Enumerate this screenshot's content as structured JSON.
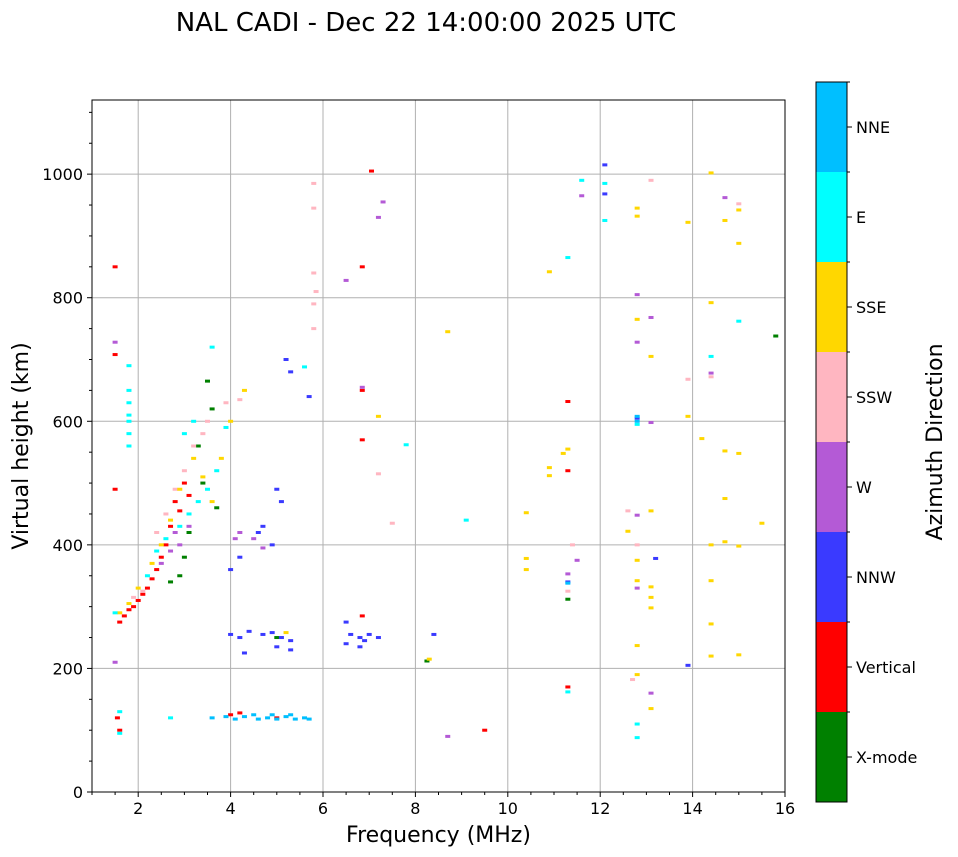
{
  "chart_data": {
    "type": "scatter",
    "title": "NAL CADI - Dec 22 14:00:00 2025 UTC",
    "xlabel": "Frequency (MHz)",
    "ylabel": "Virtual height (km)",
    "xlim": [
      1,
      16
    ],
    "ylim": [
      0,
      1120
    ],
    "xticks": [
      2,
      4,
      6,
      8,
      10,
      12,
      14,
      16
    ],
    "yticks": [
      0,
      200,
      400,
      600,
      800,
      1000
    ],
    "grid": true,
    "colorbar": {
      "title": "Azimuth Direction",
      "entries": [
        {
          "name": "X-mode",
          "color": "#008000"
        },
        {
          "name": "Vertical",
          "color": "#ff0000"
        },
        {
          "name": "NNW",
          "color": "#3a3aff"
        },
        {
          "name": "W",
          "color": "#b45ad6"
        },
        {
          "name": "SSW",
          "color": "#ffb6c1"
        },
        {
          "name": "SSE",
          "color": "#ffd700"
        },
        {
          "name": "E",
          "color": "#00ffff"
        },
        {
          "name": "NNE",
          "color": "#00bfff"
        }
      ]
    },
    "series": [
      {
        "name": "X-mode",
        "points": [
          [
            3.5,
            665
          ],
          [
            3.6,
            620
          ],
          [
            3.3,
            560
          ],
          [
            3.4,
            500
          ],
          [
            3.0,
            380
          ],
          [
            2.9,
            350
          ],
          [
            3.1,
            420
          ],
          [
            3.7,
            460
          ],
          [
            2.7,
            340
          ],
          [
            8.25,
            212
          ],
          [
            15.8,
            738
          ],
          [
            5.0,
            250
          ],
          [
            11.3,
            312
          ]
        ]
      },
      {
        "name": "Vertical",
        "points": [
          [
            1.5,
            850
          ],
          [
            1.5,
            708
          ],
          [
            1.5,
            490
          ],
          [
            1.6,
            275
          ],
          [
            1.7,
            285
          ],
          [
            1.8,
            295
          ],
          [
            1.9,
            300
          ],
          [
            2.0,
            310
          ],
          [
            2.1,
            320
          ],
          [
            2.2,
            330
          ],
          [
            2.3,
            345
          ],
          [
            2.4,
            360
          ],
          [
            2.5,
            380
          ],
          [
            2.6,
            400
          ],
          [
            2.7,
            430
          ],
          [
            2.8,
            470
          ],
          [
            2.9,
            455
          ],
          [
            3.0,
            500
          ],
          [
            3.1,
            480
          ],
          [
            1.55,
            120
          ],
          [
            1.6,
            100
          ],
          [
            6.85,
            650
          ],
          [
            6.85,
            570
          ],
          [
            6.85,
            285
          ],
          [
            6.85,
            850
          ],
          [
            7.05,
            1005
          ],
          [
            9.5,
            100
          ],
          [
            11.3,
            632
          ],
          [
            11.3,
            520
          ],
          [
            11.3,
            170
          ],
          [
            4.0,
            125
          ],
          [
            4.2,
            128
          ],
          [
            5.0,
            120
          ]
        ]
      },
      {
        "name": "NNW",
        "points": [
          [
            4.0,
            255
          ],
          [
            4.2,
            250
          ],
          [
            4.4,
            260
          ],
          [
            4.7,
            255
          ],
          [
            4.9,
            258
          ],
          [
            5.1,
            250
          ],
          [
            5.3,
            245
          ],
          [
            5.0,
            235
          ],
          [
            5.3,
            230
          ],
          [
            4.3,
            225
          ],
          [
            6.6,
            255
          ],
          [
            6.8,
            250
          ],
          [
            7.0,
            255
          ],
          [
            7.2,
            250
          ],
          [
            6.5,
            240
          ],
          [
            6.8,
            235
          ],
          [
            6.9,
            245
          ],
          [
            8.4,
            255
          ],
          [
            4.0,
            360
          ],
          [
            4.2,
            380
          ],
          [
            4.7,
            430
          ],
          [
            4.9,
            400
          ],
          [
            5.0,
            490
          ],
          [
            5.1,
            470
          ],
          [
            5.2,
            700
          ],
          [
            5.7,
            640
          ],
          [
            6.5,
            275
          ],
          [
            11.3,
            340
          ],
          [
            12.1,
            1015
          ],
          [
            12.1,
            968
          ],
          [
            12.8,
            605
          ],
          [
            13.2,
            378
          ],
          [
            13.9,
            205
          ],
          [
            4.6,
            420
          ],
          [
            5.3,
            680
          ]
        ]
      },
      {
        "name": "W",
        "points": [
          [
            1.5,
            728
          ],
          [
            1.5,
            210
          ],
          [
            2.5,
            370
          ],
          [
            2.7,
            390
          ],
          [
            2.9,
            400
          ],
          [
            3.1,
            430
          ],
          [
            2.8,
            420
          ],
          [
            4.1,
            410
          ],
          [
            4.2,
            420
          ],
          [
            4.7,
            395
          ],
          [
            6.5,
            828
          ],
          [
            6.85,
            655
          ],
          [
            7.2,
            930
          ],
          [
            7.3,
            955
          ],
          [
            8.7,
            90
          ],
          [
            11.5,
            375
          ],
          [
            11.6,
            965
          ],
          [
            12.8,
            805
          ],
          [
            12.8,
            728
          ],
          [
            12.8,
            448
          ],
          [
            12.8,
            330
          ],
          [
            13.1,
            598
          ],
          [
            13.1,
            768
          ],
          [
            13.1,
            160
          ],
          [
            14.4,
            678
          ],
          [
            14.7,
            962
          ],
          [
            4.5,
            410
          ],
          [
            11.3,
            353
          ]
        ]
      },
      {
        "name": "SSW",
        "points": [
          [
            1.9,
            315
          ],
          [
            2.1,
            325
          ],
          [
            2.4,
            420
          ],
          [
            2.6,
            450
          ],
          [
            2.8,
            490
          ],
          [
            3.0,
            520
          ],
          [
            3.2,
            560
          ],
          [
            3.4,
            580
          ],
          [
            3.5,
            600
          ],
          [
            3.9,
            630
          ],
          [
            4.2,
            635
          ],
          [
            5.8,
            840
          ],
          [
            5.8,
            790
          ],
          [
            5.8,
            750
          ],
          [
            5.8,
            945
          ],
          [
            5.8,
            985
          ],
          [
            5.85,
            810
          ],
          [
            7.2,
            515
          ],
          [
            7.5,
            435
          ],
          [
            11.4,
            400
          ],
          [
            12.6,
            455
          ],
          [
            12.7,
            182
          ],
          [
            12.8,
            400
          ],
          [
            13.1,
            990
          ],
          [
            13.9,
            668
          ],
          [
            14.4,
            672
          ],
          [
            15.0,
            952
          ],
          [
            11.3,
            325
          ]
        ]
      },
      {
        "name": "SSE",
        "points": [
          [
            1.6,
            290
          ],
          [
            1.8,
            305
          ],
          [
            2.0,
            330
          ],
          [
            2.3,
            370
          ],
          [
            2.5,
            400
          ],
          [
            2.7,
            440
          ],
          [
            2.9,
            490
          ],
          [
            3.2,
            540
          ],
          [
            3.4,
            510
          ],
          [
            3.6,
            470
          ],
          [
            3.8,
            540
          ],
          [
            4.0,
            600
          ],
          [
            4.3,
            650
          ],
          [
            5.2,
            258
          ],
          [
            7.2,
            608
          ],
          [
            8.3,
            215
          ],
          [
            8.7,
            745
          ],
          [
            10.4,
            452
          ],
          [
            10.4,
            378
          ],
          [
            10.4,
            360
          ],
          [
            10.9,
            842
          ],
          [
            10.9,
            525
          ],
          [
            10.9,
            512
          ],
          [
            11.2,
            548
          ],
          [
            11.3,
            555
          ],
          [
            12.6,
            422
          ],
          [
            12.8,
            945
          ],
          [
            12.8,
            932
          ],
          [
            12.8,
            765
          ],
          [
            12.8,
            375
          ],
          [
            12.8,
            342
          ],
          [
            12.8,
            237
          ],
          [
            12.8,
            190
          ],
          [
            13.1,
            705
          ],
          [
            13.1,
            455
          ],
          [
            13.1,
            332
          ],
          [
            13.1,
            315
          ],
          [
            13.1,
            298
          ],
          [
            13.1,
            135
          ],
          [
            13.9,
            922
          ],
          [
            13.9,
            608
          ],
          [
            14.2,
            572
          ],
          [
            14.4,
            1002
          ],
          [
            14.4,
            792
          ],
          [
            14.4,
            400
          ],
          [
            14.4,
            342
          ],
          [
            14.4,
            272
          ],
          [
            14.4,
            220
          ],
          [
            14.7,
            925
          ],
          [
            14.7,
            552
          ],
          [
            14.7,
            475
          ],
          [
            14.7,
            405
          ],
          [
            15.0,
            942
          ],
          [
            15.0,
            888
          ],
          [
            15.0,
            548
          ],
          [
            15.0,
            398
          ],
          [
            15.0,
            222
          ],
          [
            15.5,
            435
          ]
        ]
      },
      {
        "name": "E",
        "points": [
          [
            1.8,
            690
          ],
          [
            1.8,
            650
          ],
          [
            1.8,
            610
          ],
          [
            1.8,
            580
          ],
          [
            1.8,
            560
          ],
          [
            1.8,
            630
          ],
          [
            1.8,
            600
          ],
          [
            1.5,
            290
          ],
          [
            1.6,
            95
          ],
          [
            1.6,
            130
          ],
          [
            2.2,
            350
          ],
          [
            2.4,
            390
          ],
          [
            2.6,
            410
          ],
          [
            2.9,
            430
          ],
          [
            3.1,
            450
          ],
          [
            3.3,
            470
          ],
          [
            3.5,
            490
          ],
          [
            3.7,
            520
          ],
          [
            3.0,
            580
          ],
          [
            3.2,
            600
          ],
          [
            3.6,
            720
          ],
          [
            3.9,
            590
          ],
          [
            2.7,
            120
          ],
          [
            5.6,
            688
          ],
          [
            7.8,
            562
          ],
          [
            9.1,
            440
          ],
          [
            11.3,
            865
          ],
          [
            11.3,
            162
          ],
          [
            11.6,
            990
          ],
          [
            12.1,
            985
          ],
          [
            12.1,
            925
          ],
          [
            12.8,
            595
          ],
          [
            12.8,
            110
          ],
          [
            12.8,
            88
          ],
          [
            14.4,
            705
          ],
          [
            15.0,
            762
          ]
        ]
      },
      {
        "name": "NNE",
        "points": [
          [
            3.6,
            120
          ],
          [
            3.9,
            122
          ],
          [
            4.1,
            118
          ],
          [
            4.3,
            122
          ],
          [
            4.6,
            118
          ],
          [
            4.8,
            120
          ],
          [
            5.0,
            118
          ],
          [
            5.2,
            122
          ],
          [
            5.4,
            118
          ],
          [
            5.6,
            120
          ],
          [
            5.7,
            118
          ],
          [
            4.5,
            125
          ],
          [
            4.9,
            125
          ],
          [
            5.3,
            125
          ],
          [
            11.3,
            338
          ],
          [
            12.8,
            608
          ],
          [
            12.8,
            600
          ]
        ]
      }
    ]
  }
}
